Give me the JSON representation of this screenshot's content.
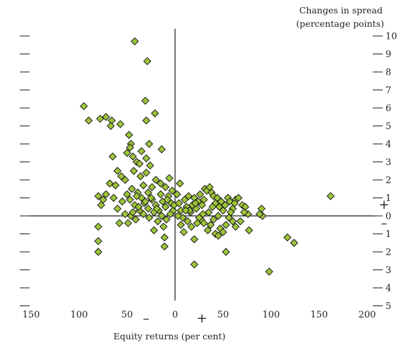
{
  "chart_data": {
    "type": "scatter",
    "title": "",
    "xlabel": "Equity returns (per cent)",
    "ylabel_line1": "Changes in spread",
    "ylabel_line2": "(percentage points)",
    "xlim": [
      -155,
      202
    ],
    "ylim": [
      -5,
      10.5
    ],
    "x_reversed_left_of_zero": true,
    "grid": false,
    "x_tick_values": [
      -150,
      -100,
      -50,
      0,
      50,
      100,
      150,
      200
    ],
    "x_tick_labels": [
      "150",
      "100",
      "50",
      "0",
      "50",
      "100",
      "150",
      "200"
    ],
    "y_tick_values": [
      10,
      9,
      8,
      7,
      6,
      5,
      4,
      3,
      2,
      1,
      0,
      -1,
      -2,
      -3,
      -4,
      -5
    ],
    "y_tick_labels": [
      "10",
      "9",
      "8",
      "7",
      "6",
      "5",
      "4",
      "3",
      "2",
      "1",
      "0",
      "1",
      "2",
      "3",
      "4",
      "5"
    ],
    "x_sign_labels": [
      "–",
      "+"
    ],
    "y_sign_labels": [
      "+",
      "–"
    ],
    "marker": {
      "shape": "diamond",
      "fill": "#9dc53a",
      "stroke": "#1a1a1a"
    },
    "points": [
      [
        -42,
        9.7
      ],
      [
        -29,
        8.6
      ],
      [
        -31,
        6.4
      ],
      [
        -21,
        5.7
      ],
      [
        -30,
        5.3
      ],
      [
        -95,
        6.1
      ],
      [
        -90,
        5.3
      ],
      [
        -78,
        5.4
      ],
      [
        -72,
        5.5
      ],
      [
        -66,
        5.3
      ],
      [
        -67,
        5.0
      ],
      [
        -57,
        5.1
      ],
      [
        -48,
        4.5
      ],
      [
        -46,
        4.0
      ],
      [
        -47,
        3.8
      ],
      [
        -50,
        3.5
      ],
      [
        -44,
        3.3
      ],
      [
        -40,
        3.0
      ],
      [
        -35,
        3.6
      ],
      [
        -27,
        4.0
      ],
      [
        -30,
        3.2
      ],
      [
        -26,
        2.8
      ],
      [
        -14,
        3.7
      ],
      [
        -65,
        3.3
      ],
      [
        -60,
        2.5
      ],
      [
        -56,
        2.2
      ],
      [
        -52,
        2.0
      ],
      [
        -43,
        2.5
      ],
      [
        -37,
        2.9
      ],
      [
        -30,
        2.4
      ],
      [
        -20,
        2.0
      ],
      [
        -24,
        1.6
      ],
      [
        -36,
        2.2
      ],
      [
        -33,
        1.7
      ],
      [
        -28,
        1.3
      ],
      [
        -15,
        1.8
      ],
      [
        -10,
        1.6
      ],
      [
        -6,
        2.1
      ],
      [
        -3,
        1.4
      ],
      [
        -68,
        1.8
      ],
      [
        -62,
        1.7
      ],
      [
        -72,
        1.2
      ],
      [
        -75,
        0.9
      ],
      [
        -80,
        1.1
      ],
      [
        -77,
        0.6
      ],
      [
        -64,
        1.0
      ],
      [
        -55,
        0.8
      ],
      [
        -50,
        1.2
      ],
      [
        -47,
        0.9
      ],
      [
        -42,
        0.6
      ],
      [
        -39,
        1.3
      ],
      [
        -35,
        1.0
      ],
      [
        -32,
        0.7
      ],
      [
        -28,
        0.4
      ],
      [
        -24,
        0.9
      ],
      [
        -20,
        0.6
      ],
      [
        -17,
        0.3
      ],
      [
        -13,
        0.8
      ],
      [
        -10,
        0.5
      ],
      [
        -7,
        1.1
      ],
      [
        -4,
        0.7
      ],
      [
        -2,
        0.3
      ],
      [
        -60,
        0.4
      ],
      [
        -52,
        0.1
      ],
      [
        -46,
        0.0
      ],
      [
        -41,
        -0.2
      ],
      [
        -37,
        0.3
      ],
      [
        -33,
        0.1
      ],
      [
        -27,
        -0.1
      ],
      [
        -22,
        0.2
      ],
      [
        -18,
        -0.3
      ],
      [
        -14,
        0.0
      ],
      [
        -9,
        -0.2
      ],
      [
        -5,
        0.1
      ],
      [
        -49,
        -0.4
      ],
      [
        -58,
        -0.4
      ],
      [
        -80,
        -0.6
      ],
      [
        -80,
        -1.4
      ],
      [
        -80,
        -2.0
      ],
      [
        -22,
        -0.8
      ],
      [
        -12,
        -0.6
      ],
      [
        -11,
        -1.2
      ],
      [
        -11,
        -1.7
      ],
      [
        -38,
        0.5
      ],
      [
        -25,
        1.0
      ],
      [
        -15,
        1.2
      ],
      [
        -8,
        0.9
      ],
      [
        -1,
        0.6
      ],
      [
        -44,
        0.2
      ],
      [
        -31,
        0.8
      ],
      [
        -19,
        0.4
      ],
      [
        -45,
        1.5
      ],
      [
        -40,
        1.1
      ],
      [
        5,
        1.8
      ],
      [
        2,
        1.2
      ],
      [
        4,
        0.7
      ],
      [
        6,
        0.3
      ],
      [
        8,
        -0.1
      ],
      [
        10,
        0.9
      ],
      [
        12,
        0.5
      ],
      [
        14,
        1.1
      ],
      [
        16,
        0.2
      ],
      [
        18,
        0.6
      ],
      [
        20,
        1.0
      ],
      [
        22,
        0.4
      ],
      [
        24,
        0.8
      ],
      [
        26,
        1.2
      ],
      [
        28,
        0.6
      ],
      [
        30,
        0.9
      ],
      [
        31,
        1.5
      ],
      [
        33,
        1.4
      ],
      [
        36,
        1.6
      ],
      [
        38,
        1.3
      ],
      [
        40,
        1.1
      ],
      [
        42,
        0.7
      ],
      [
        44,
        1.0
      ],
      [
        46,
        0.5
      ],
      [
        48,
        0.8
      ],
      [
        50,
        0.3
      ],
      [
        52,
        0.6
      ],
      [
        55,
        1.0
      ],
      [
        57,
        0.8
      ],
      [
        60,
        0.4
      ],
      [
        63,
        0.9
      ],
      [
        66,
        1.0
      ],
      [
        70,
        0.6
      ],
      [
        73,
        0.5
      ],
      [
        76,
        0.1
      ],
      [
        90,
        0.4
      ],
      [
        91,
        0.0
      ],
      [
        88,
        0.1
      ],
      [
        162,
        1.1
      ],
      [
        6,
        -0.5
      ],
      [
        9,
        -0.9
      ],
      [
        13,
        -0.3
      ],
      [
        17,
        -0.6
      ],
      [
        20,
        -1.3
      ],
      [
        23,
        -0.4
      ],
      [
        27,
        -0.2
      ],
      [
        30,
        -0.4
      ],
      [
        34,
        -0.8
      ],
      [
        37,
        -0.5
      ],
      [
        40,
        -0.2
      ],
      [
        42,
        -1.0
      ],
      [
        45,
        -1.1
      ],
      [
        47,
        -0.7
      ],
      [
        50,
        -0.9
      ],
      [
        53,
        -0.5
      ],
      [
        56,
        -0.1
      ],
      [
        60,
        -0.3
      ],
      [
        63,
        -0.6
      ],
      [
        68,
        -0.3
      ],
      [
        77,
        -0.8
      ],
      [
        53,
        -2.0
      ],
      [
        20,
        -2.7
      ],
      [
        98,
        -3.1
      ],
      [
        117,
        -1.2
      ],
      [
        124,
        -1.5
      ],
      [
        15,
        0.3
      ],
      [
        25,
        -0.1
      ],
      [
        35,
        0.2
      ],
      [
        45,
        0.0
      ],
      [
        3,
        0.0
      ],
      [
        11,
        0.3
      ],
      [
        21,
        0.7
      ],
      [
        29,
        0.1
      ],
      [
        39,
        0.5
      ],
      [
        62,
        0.7
      ],
      [
        72,
        0.2
      ],
      [
        58,
        0.2
      ]
    ]
  }
}
